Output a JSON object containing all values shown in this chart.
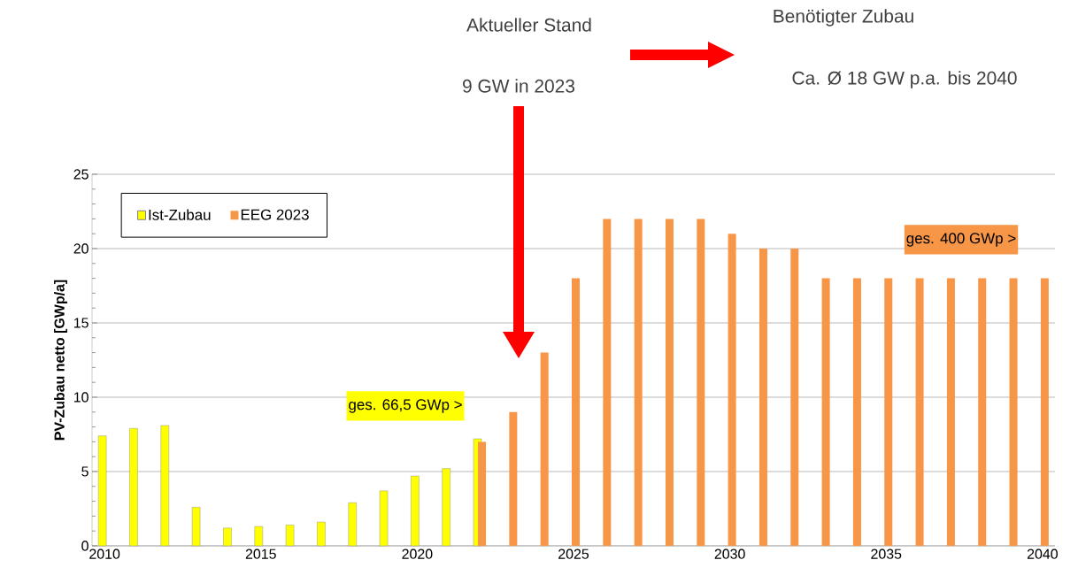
{
  "chart_data": {
    "type": "bar",
    "ylabel": "PV-Zubau netto [GWp/a]",
    "annotations": [
      "Aktueller Stand",
      "9 GW in 2023",
      "Benötigter Zubau",
      "Ca. Ø 18 GW p.a. bis 2040",
      "ges. 66,5 GWp  >",
      "ges. 400 GWp  >"
    ],
    "series": [
      {
        "name": "Ist-Zubau",
        "color": "#ffff00",
        "x": [
          2010,
          2011,
          2012,
          2013,
          2014,
          2015,
          2016,
          2017,
          2018,
          2019,
          2020,
          2021,
          2022
        ],
        "values": [
          7.4,
          7.9,
          8.1,
          2.6,
          1.2,
          1.3,
          1.4,
          1.6,
          2.9,
          3.7,
          4.7,
          5.2,
          7.2
        ]
      },
      {
        "name": "EEG 2023",
        "color": "#f79646",
        "x": [
          2022,
          2023,
          2024,
          2025,
          2026,
          2027,
          2028,
          2029,
          2030,
          2031,
          2032,
          2033,
          2034,
          2035,
          2036,
          2037,
          2038,
          2039,
          2040
        ],
        "values": [
          7,
          9,
          13,
          18,
          22,
          22,
          22,
          22,
          21,
          20,
          20,
          18,
          18,
          18,
          18,
          18,
          18,
          18,
          18
        ]
      }
    ],
    "xlim": [
      2009.6,
      2040.4
    ],
    "xticks": [
      2010,
      2015,
      2020,
      2025,
      2030,
      2035,
      2040
    ],
    "ylim": [
      0,
      25
    ],
    "yticks": [
      0,
      5,
      10,
      15,
      20,
      25
    ],
    "grid": "y",
    "legend": "top left"
  }
}
